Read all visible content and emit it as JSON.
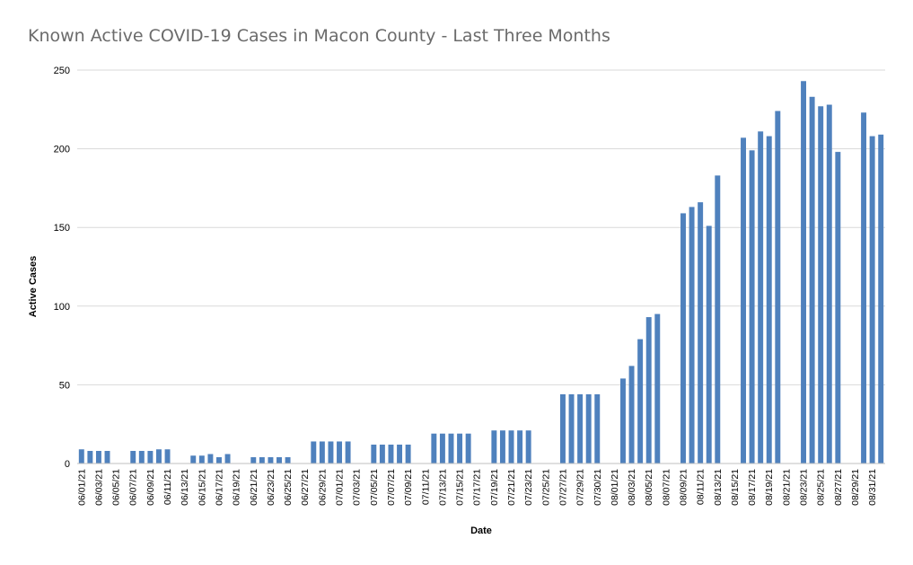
{
  "chart_data": {
    "type": "bar",
    "title": "Known Active COVID-19 Cases in Macon County - Last Three Months",
    "xlabel": "Date",
    "ylabel": "Active Cases",
    "ylim": [
      0,
      250
    ],
    "yticks": [
      0,
      50,
      100,
      150,
      200,
      250
    ],
    "grid": true,
    "bar_color": "#4f81bd",
    "grid_color": "#d9d9d9",
    "categories": [
      "06/01/21",
      "06/02/21",
      "06/03/21",
      "06/04/21",
      "06/05/21",
      "06/06/21",
      "06/07/21",
      "06/08/21",
      "06/09/21",
      "06/10/21",
      "06/11/21",
      "06/12/21",
      "06/13/21",
      "06/14/21",
      "06/15/21",
      "06/16/21",
      "06/17/21",
      "06/18/21",
      "06/19/21",
      "06/20/21",
      "06/21/21",
      "06/22/21",
      "06/23/21",
      "06/24/21",
      "06/25/21",
      "06/26/21",
      "06/27/21",
      "06/28/21",
      "06/29/21",
      "06/30/21",
      "07/01/21",
      "07/02/21",
      "07/03/21",
      "07/04/21",
      "07/05/21",
      "07/06/21",
      "07/07/21",
      "07/08/21",
      "07/09/21",
      "07/10/21",
      "07/11/21",
      "07/12/21",
      "07/13/21",
      "07/14/21",
      "07/15/21",
      "07/16/21",
      "07/17/21",
      "07/18/21",
      "07/19/21",
      "07/20/21",
      "07/21/21",
      "07/22/21",
      "07/23/21",
      "07/24/21",
      "07/25/21",
      "07/26/21",
      "07/27/21",
      "07/28/21",
      "07/29/21",
      "07/30/21",
      "07/30/21",
      "07/31/21",
      "08/01/21",
      "08/02/21",
      "08/03/21",
      "08/04/21",
      "08/05/21",
      "08/06/21",
      "08/07/21",
      "08/08/21",
      "08/09/21",
      "08/10/21",
      "08/11/21",
      "08/12/21",
      "08/13/21",
      "08/14/21",
      "08/15/21",
      "08/16/21",
      "08/17/21",
      "08/18/21",
      "08/19/21",
      "08/20/21",
      "08/21/21",
      "08/22/21",
      "08/23/21",
      "08/24/21",
      "08/25/21",
      "08/26/21",
      "08/27/21",
      "08/28/21",
      "08/29/21",
      "08/30/21",
      "08/31/21",
      "09/01/21"
    ],
    "tick_labels": [
      "06/01/21",
      "",
      "06/03/21",
      "",
      "06/05/21",
      "",
      "06/07/21",
      "",
      "06/09/21",
      "",
      "06/11/21",
      "",
      "06/13/21",
      "",
      "06/15/21",
      "",
      "06/17/21",
      "",
      "06/19/21",
      "",
      "06/21/21",
      "",
      "06/23/21",
      "",
      "06/25/21",
      "",
      "06/27/21",
      "",
      "06/29/21",
      "",
      "07/01/21",
      "",
      "07/03/21",
      "",
      "07/05/21",
      "",
      "07/07/21",
      "",
      "07/09/21",
      "",
      "07/11/21",
      "",
      "07/13/21",
      "",
      "07/15/21",
      "",
      "07/17/21",
      "",
      "07/19/21",
      "",
      "07/21/21",
      "",
      "07/23/21",
      "",
      "07/25/21",
      "",
      "07/27/21",
      "",
      "07/29/21",
      "",
      "07/30/21",
      "",
      "08/01/21",
      "",
      "08/03/21",
      "",
      "08/05/21",
      "",
      "08/07/21",
      "",
      "08/09/21",
      "",
      "08/11/21",
      "",
      "08/13/21",
      "",
      "08/15/21",
      "",
      "08/17/21",
      "",
      "08/19/21",
      "",
      "08/21/21",
      "",
      "08/23/21",
      "",
      "08/25/21",
      "",
      "08/27/21",
      "",
      "08/29/21",
      "",
      "08/31/21",
      ""
    ],
    "values": [
      9,
      8,
      8,
      8,
      null,
      null,
      8,
      8,
      8,
      9,
      9,
      null,
      null,
      5,
      5,
      6,
      4,
      6,
      null,
      null,
      4,
      4,
      4,
      4,
      4,
      null,
      null,
      14,
      14,
      14,
      14,
      14,
      null,
      null,
      12,
      12,
      12,
      12,
      12,
      null,
      null,
      19,
      19,
      19,
      19,
      19,
      null,
      null,
      21,
      21,
      21,
      21,
      21,
      null,
      null,
      null,
      44,
      44,
      44,
      44,
      44,
      null,
      null,
      54,
      62,
      79,
      93,
      95,
      null,
      null,
      159,
      163,
      166,
      151,
      183,
      null,
      null,
      207,
      199,
      211,
      208,
      224,
      null,
      null,
      243,
      233,
      227,
      228,
      198,
      null,
      null,
      223,
      208,
      209
    ]
  }
}
